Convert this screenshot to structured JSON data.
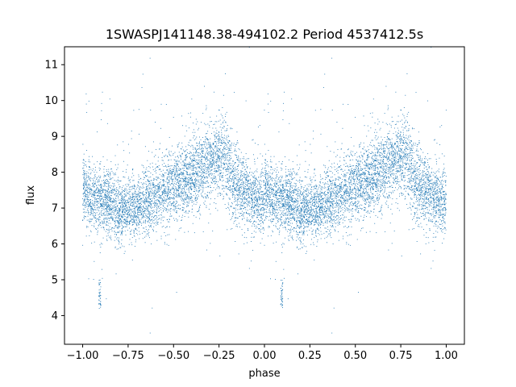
{
  "chart_data": {
    "type": "scatter",
    "title": "1SWASPJ141148.38-494102.2 Period 4537412.5s",
    "xlabel": "phase",
    "ylabel": "flux",
    "xlim": [
      -1.1,
      1.1
    ],
    "ylim": [
      3.2,
      11.5
    ],
    "xticks": [
      -1.0,
      -0.75,
      -0.5,
      -0.25,
      0.0,
      0.25,
      0.5,
      0.75,
      1.0
    ],
    "xtick_labels": [
      "−1.00",
      "−0.75",
      "−0.50",
      "−0.25",
      "0.00",
      "0.25",
      "0.50",
      "0.75",
      "1.00"
    ],
    "yticks": [
      4,
      5,
      6,
      7,
      8,
      9,
      10,
      11
    ],
    "ytick_labels": [
      "4",
      "5",
      "6",
      "7",
      "8",
      "9",
      "10",
      "11"
    ],
    "grid": false,
    "legend": "none",
    "marker_color": "#1f77b4",
    "series": [
      {
        "description_free": true,
        "phase_folded": true,
        "profile": {
          "phase": [
            -1.0,
            -0.95,
            -0.9,
            -0.85,
            -0.8,
            -0.75,
            -0.7,
            -0.65,
            -0.6,
            -0.55,
            -0.5,
            -0.45,
            -0.4,
            -0.35,
            -0.3,
            -0.25,
            -0.2,
            -0.15,
            -0.1,
            -0.05,
            0.0
          ],
          "median_flux": [
            7.6,
            7.3,
            7.2,
            7.2,
            6.9,
            7.0,
            7.0,
            7.2,
            7.3,
            7.5,
            7.6,
            7.8,
            7.9,
            8.0,
            8.2,
            8.5,
            8.2,
            7.6,
            7.4,
            7.3,
            7.2
          ],
          "spread": [
            0.55,
            0.6,
            0.6,
            0.6,
            0.55,
            0.55,
            0.55,
            0.55,
            0.6,
            0.6,
            0.6,
            0.65,
            0.65,
            0.7,
            0.7,
            0.7,
            0.75,
            0.7,
            0.6,
            0.6,
            0.6
          ]
        },
        "dips": [
          {
            "phase": -0.905,
            "flux_min": 4.2,
            "flux_max": 5.0
          },
          {
            "phase": 0.095,
            "flux_min": 4.2,
            "flux_max": 5.0
          }
        ]
      }
    ]
  }
}
